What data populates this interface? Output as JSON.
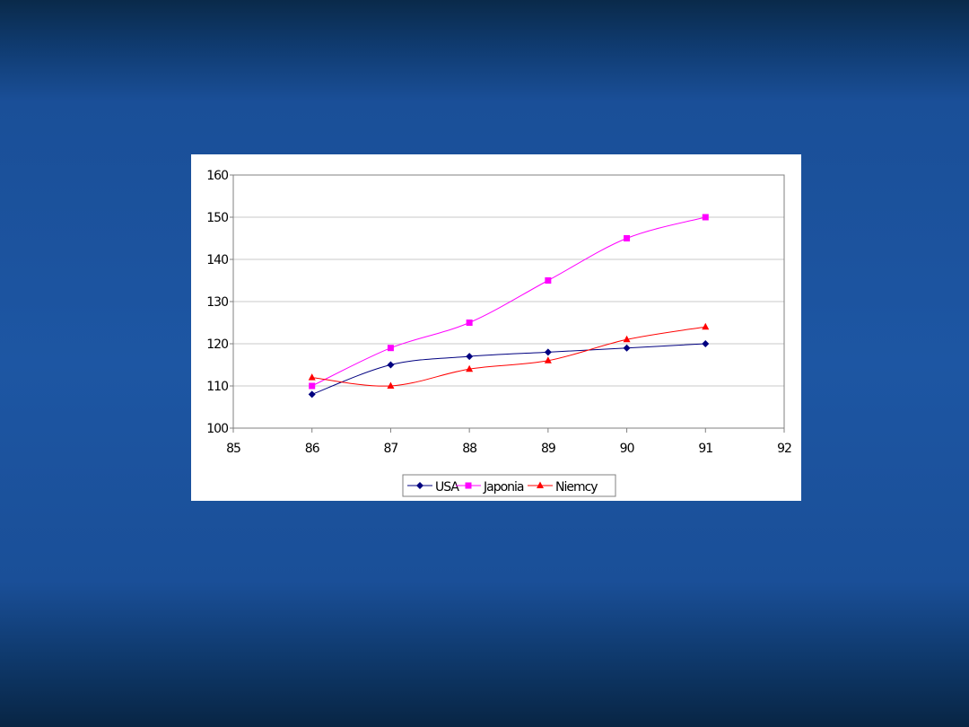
{
  "chart_data": {
    "type": "line",
    "x": [
      86,
      87,
      88,
      89,
      90,
      91
    ],
    "series": [
      {
        "name": "USA",
        "values": [
          108,
          115,
          117,
          118,
          119,
          120
        ],
        "color": "#000080",
        "marker": "diamond"
      },
      {
        "name": "Japonia",
        "values": [
          110,
          119,
          125,
          135,
          145,
          150
        ],
        "color": "#ff00ff",
        "marker": "square"
      },
      {
        "name": "Niemcy",
        "values": [
          112,
          110,
          114,
          116,
          121,
          124
        ],
        "color": "#ff0000",
        "marker": "triangle"
      }
    ],
    "xlim": [
      85,
      92
    ],
    "ylim": [
      100,
      160
    ],
    "xticks": [
      "85",
      "86",
      "87",
      "88",
      "89",
      "90",
      "91",
      "92"
    ],
    "yticks": [
      "100",
      "110",
      "120",
      "130",
      "140",
      "150",
      "160"
    ],
    "grid": "horizontal",
    "smoothed": true,
    "legend": "bottom",
    "title": "",
    "xlabel": "",
    "ylabel": ""
  }
}
